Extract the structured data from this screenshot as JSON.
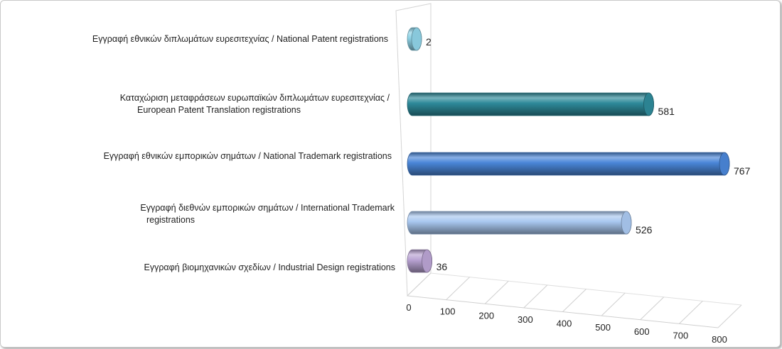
{
  "chart_data": {
    "type": "bar",
    "orientation": "horizontal",
    "style": "3d-cylinder",
    "categories": [
      [
        "Εγγραφή  εθνικών διπλωμάτων ευρεσιτεχνίας / National Patent registrations"
      ],
      [
        "Καταχώριση μεταφράσεων ευρωπαϊκών διπλωμάτων ευρεσιτεχνίας /",
        "European Patent Translation registrations"
      ],
      [
        "Εγγραφή  εθνικών εμπορικών σημάτων / National Trademark registrations"
      ],
      [
        "Εγγραφή  διεθνών εμπορικών σημάτων / International Trademark",
        "registrations"
      ],
      [
        "Εγγραφή  βιομηχανικών σχεδίων / Industrial Design registrations"
      ]
    ],
    "values": [
      2,
      581,
      767,
      526,
      36
    ],
    "value_labels": [
      "2",
      "581",
      "767",
      "526",
      "36"
    ],
    "colors": [
      "#8fd3e6",
      "#2e8a9a",
      "#4a86d8",
      "#a9c8f0",
      "#b9a3d3"
    ],
    "xlim": [
      0,
      800
    ],
    "x_ticks": [
      "0",
      "100",
      "200",
      "300",
      "400",
      "500",
      "600",
      "700",
      "800"
    ],
    "title": "",
    "xlabel": "",
    "ylabel": "",
    "legend": "none",
    "grid": false
  }
}
